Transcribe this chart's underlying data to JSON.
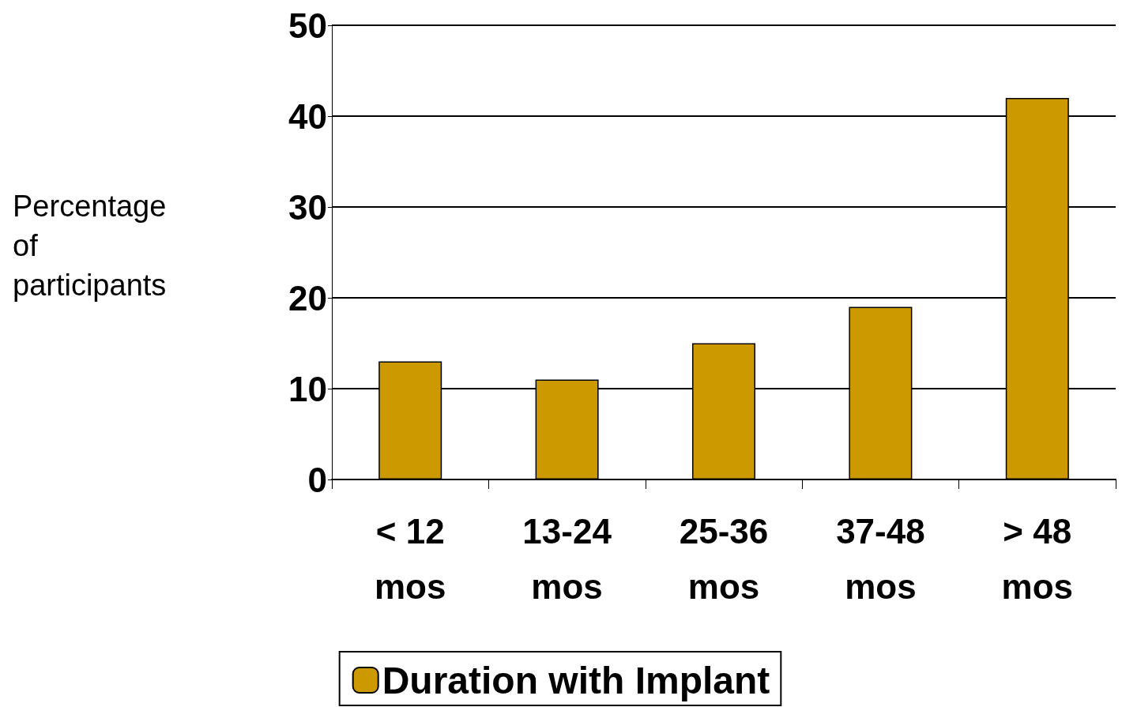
{
  "chart_data": {
    "type": "bar",
    "ylabel": "Percentage of participants",
    "categories": [
      "< 12 mos",
      "13-24 mos",
      "25-36 mos",
      "37-48 mos",
      "> 48 mos"
    ],
    "series": [
      {
        "name": "Duration with Implant",
        "color": "#cc9900",
        "values": [
          13,
          11,
          15,
          19,
          42
        ]
      }
    ],
    "ylim": [
      0,
      50
    ],
    "yticks": [
      0,
      10,
      20,
      30,
      40,
      50
    ],
    "grid": "y",
    "legend": "bottom"
  }
}
